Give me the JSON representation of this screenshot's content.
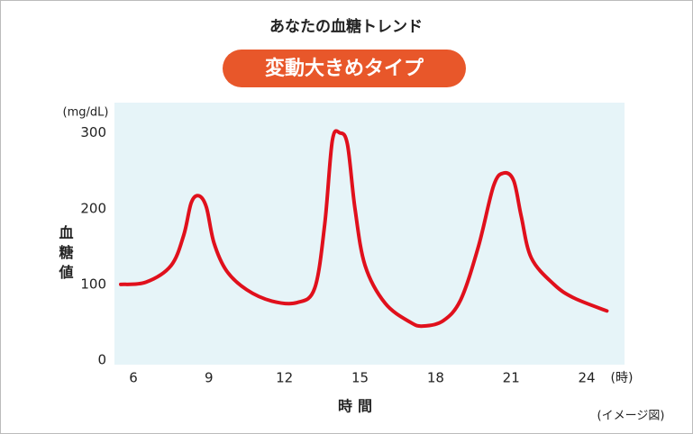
{
  "chart_data": {
    "type": "line",
    "title": "あなたの血糖トレンド",
    "badge": "変動大きめタイプ",
    "badge_color": "#e8572a",
    "y_unit": "(mg/dL)",
    "y_label": "血糖値",
    "x_label": "時間",
    "x_unit": "(時)",
    "note": "(イメージ図)",
    "plot_background": "#e6f4f8",
    "x": [
      5.5,
      6.5,
      7.5,
      8.0,
      8.3,
      8.6,
      8.9,
      9.2,
      9.7,
      10.5,
      11.5,
      12.5,
      13.2,
      13.6,
      13.9,
      14.2,
      14.5,
      14.8,
      15.2,
      16.0,
      17.0,
      17.5,
      18.3,
      19.0,
      19.7,
      20.3,
      20.7,
      21.1,
      21.4,
      21.8,
      22.7,
      23.5,
      24.8
    ],
    "series": [
      {
        "name": "血糖値",
        "color": "#e0101c",
        "values": [
          100,
          103,
          125,
          165,
          208,
          217,
          202,
          155,
          118,
          93,
          78,
          76,
          95,
          180,
          290,
          300,
          285,
          200,
          125,
          75,
          50,
          45,
          52,
          80,
          150,
          230,
          247,
          237,
          190,
          135,
          100,
          82,
          65
        ]
      }
    ],
    "xlim": [
      5.25,
      25.5
    ],
    "ylim": [
      0,
      340
    ],
    "xticks": [
      6,
      9,
      12,
      15,
      18,
      21,
      24
    ],
    "yticks": [
      0,
      100,
      200,
      300
    ]
  }
}
